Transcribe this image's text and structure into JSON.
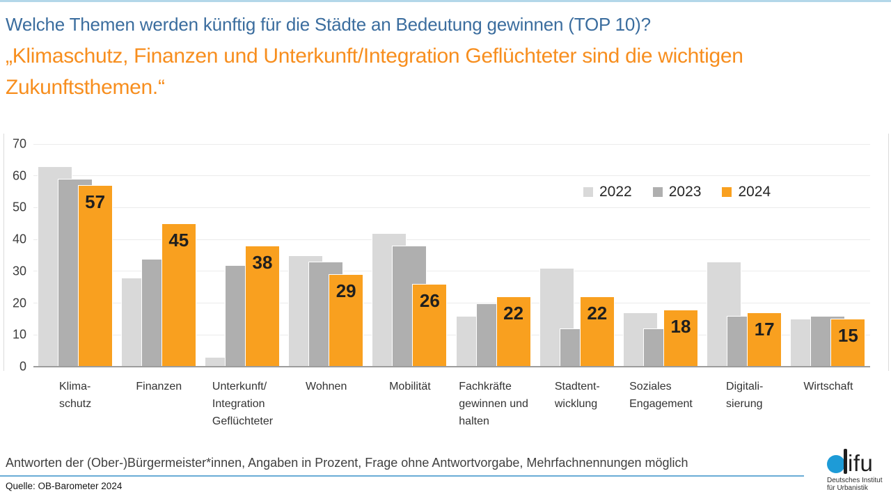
{
  "header": {
    "title": "Welche Themen werden künftig für die Städte an Bedeutung gewinnen (TOP 10)?",
    "subtitle": "„Klimaschutz, Finanzen und Unterkunft/Integration Geflüchteter sind die wichtigen Zukunftsthemen.“"
  },
  "chart_data": {
    "type": "bar",
    "categories": [
      [
        "Klima-",
        "schutz"
      ],
      [
        "Finanzen"
      ],
      [
        "Unterkunft/",
        "Integration",
        "Geflüchteter"
      ],
      [
        "Wohnen"
      ],
      [
        "Mobilität"
      ],
      [
        "Fachkräfte",
        "gewinnen und",
        "halten"
      ],
      [
        "Stadtent-",
        "wicklung"
      ],
      [
        "Soziales",
        "Engagement"
      ],
      [
        "Digitali-",
        "sierung"
      ],
      [
        "Wirtschaft"
      ]
    ],
    "series": [
      {
        "name": "2022",
        "color": "#D9D9D9",
        "data_labels": false,
        "values": [
          63,
          28,
          3,
          35,
          42,
          16,
          31,
          17,
          33,
          15
        ]
      },
      {
        "name": "2023",
        "color": "#AFAFAF",
        "data_labels": false,
        "values": [
          59,
          34,
          32,
          33,
          38,
          20,
          12,
          12,
          16,
          16
        ]
      },
      {
        "name": "2024",
        "color": "#F9A01F",
        "data_labels": true,
        "values": [
          57,
          45,
          38,
          29,
          26,
          22,
          22,
          18,
          17,
          15
        ]
      }
    ],
    "ylim": [
      0,
      70
    ],
    "yticks": [
      0,
      10,
      20,
      30,
      40,
      50,
      60,
      70
    ],
    "unit": "Prozent",
    "grid": true,
    "legend_position": "top-right-inside",
    "data_label_color": "#1F1F1F"
  },
  "footer": {
    "note": "Antworten der (Ober-)Bürgermeister*innen, Angaben in Prozent, Frage ohne Antwortvorgabe, Mehrfachnennungen möglich",
    "source": "Quelle: OB-Barometer 2024",
    "logo": {
      "wordmark": "difu",
      "caption_line1": "Deutsches Institut",
      "caption_line2": "für Urbanistik"
    }
  },
  "palette": {
    "title_blue": "#3B6D9E",
    "subtitle_orange": "#F78E1E",
    "top_rule_blue": "#B3D7E9",
    "footer_rule_blue": "#69ACD6",
    "logo_blue": "#1D9BD7",
    "accent_orange": "#F9A01F"
  }
}
